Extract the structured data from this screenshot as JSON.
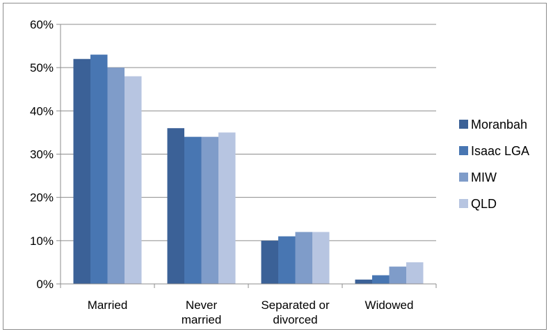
{
  "chart_data": {
    "type": "bar",
    "title": "",
    "xlabel": "",
    "ylabel": "",
    "categories": [
      "Married",
      "Never married",
      "Separated or divorced",
      "Widowed"
    ],
    "category_lines": [
      [
        "Married"
      ],
      [
        "Never",
        "married"
      ],
      [
        "Separated or",
        "divorced"
      ],
      [
        "Widowed"
      ]
    ],
    "series": [
      {
        "name": "Moranbah",
        "color": "#3b6197",
        "values": [
          52,
          36,
          10,
          1
        ]
      },
      {
        "name": "Isaac LGA",
        "color": "#4876b2",
        "values": [
          53,
          34,
          11,
          2
        ]
      },
      {
        "name": "MIW",
        "color": "#7f9cc9",
        "values": [
          50,
          34,
          12,
          4
        ]
      },
      {
        "name": "QLD",
        "color": "#b7c5e1",
        "values": [
          48,
          35,
          12,
          5
        ]
      }
    ],
    "ylim": [
      0,
      60
    ],
    "yticks": [
      0,
      10,
      20,
      30,
      40,
      50,
      60
    ],
    "ytick_labels": [
      "0%",
      "10%",
      "20%",
      "30%",
      "40%",
      "50%",
      "60%"
    ],
    "value_unit": "percent",
    "grid": true,
    "legend_position": "right"
  }
}
